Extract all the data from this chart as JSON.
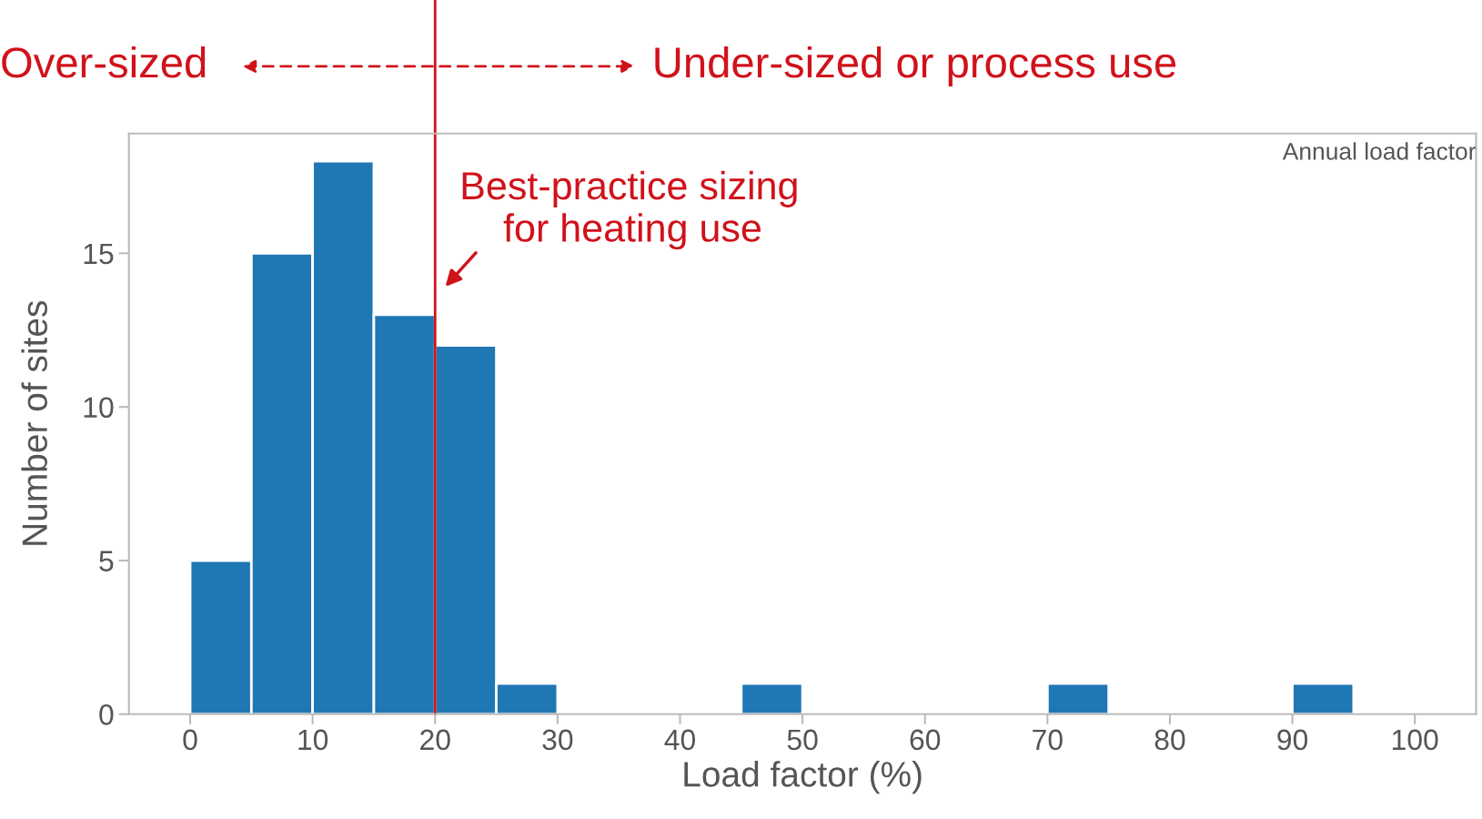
{
  "chart_data": {
    "type": "histogram",
    "title": "Annual load factor",
    "xlabel": "Load factor (%)",
    "ylabel": "Number of sites",
    "bins": [
      0,
      5,
      10,
      15,
      20,
      25,
      30,
      35,
      40,
      45,
      50,
      55,
      60,
      65,
      70,
      75,
      80,
      85,
      90,
      95
    ],
    "values": [
      5,
      15,
      18,
      13,
      12,
      1,
      0,
      0,
      0,
      1,
      0,
      0,
      0,
      0,
      1,
      0,
      0,
      0,
      1
    ],
    "color": "#1f77b4",
    "xlim": [
      -5,
      105
    ],
    "ylim": [
      0,
      18.9
    ],
    "xticks": [
      0,
      10,
      20,
      30,
      40,
      50,
      60,
      70,
      80,
      90,
      100
    ],
    "yticks": [
      0,
      5,
      10,
      15
    ],
    "ref_lines": [
      {
        "axis": "x",
        "value": 20,
        "label": "Best-practice sizing\n    for heating use",
        "color": "#d0121b"
      }
    ],
    "annotations": [
      "Over-sized",
      "Under-sized or process use"
    ],
    "grid": false
  }
}
